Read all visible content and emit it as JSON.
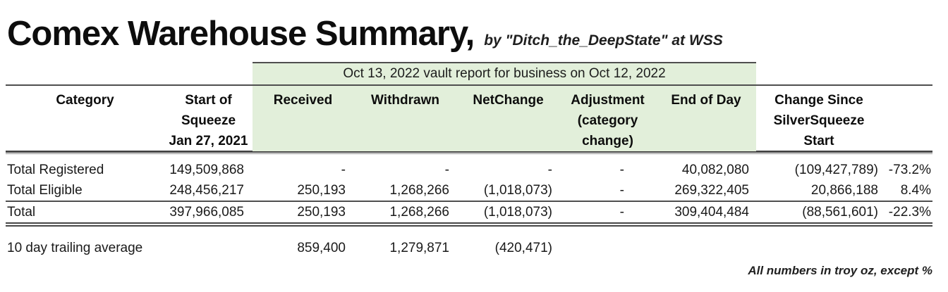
{
  "header": {
    "title": "Comex Warehouse Summary,",
    "subtitle": "by \"Ditch_the_DeepState\" at WSS"
  },
  "table": {
    "banner": "Oct 13, 2022 vault report for business on Oct 12, 2022",
    "col_headers": {
      "category": "Category",
      "start_1": "Start of",
      "start_2": "Squeeze",
      "start_3": "Jan 27, 2021",
      "received": "Received",
      "withdrawn": "Withdrawn",
      "netchange": "NetChange",
      "adjustment_1": "Adjustment",
      "adjustment_2": "(category",
      "adjustment_3": "change)",
      "end_of_day": "End of Day",
      "change_1": "Change Since",
      "change_2": "SilverSqueeze",
      "change_3": "Start"
    },
    "rows": [
      {
        "category": "Total Registered",
        "start": "149,509,868",
        "received": "-",
        "withdrawn": "-",
        "netchange": "-",
        "adjustment": "-",
        "end_of_day": "40,082,080",
        "change": "(109,427,789)",
        "pct": "-73.2%"
      },
      {
        "category": "Total Eligible",
        "start": "248,456,217",
        "received": "250,193",
        "withdrawn": "1,268,266",
        "netchange": "(1,018,073)",
        "adjustment": "-",
        "end_of_day": "269,322,405",
        "change": "20,866,188",
        "pct": "8.4%"
      },
      {
        "category": "Total",
        "start": "397,966,085",
        "received": "250,193",
        "withdrawn": "1,268,266",
        "netchange": "(1,018,073)",
        "adjustment": "-",
        "end_of_day": "309,404,484",
        "change": "(88,561,601)",
        "pct": "-22.3%"
      }
    ],
    "trailing_row": {
      "label": "10 day trailing average",
      "received": "859,400",
      "withdrawn": "1,279,871",
      "netchange": "(420,471)"
    }
  },
  "footnote": "All numbers in troy oz, except %",
  "colors": {
    "band_green": "#e2efda",
    "rule_dark": "#4f4f4f",
    "text": "#1a1a1a"
  }
}
